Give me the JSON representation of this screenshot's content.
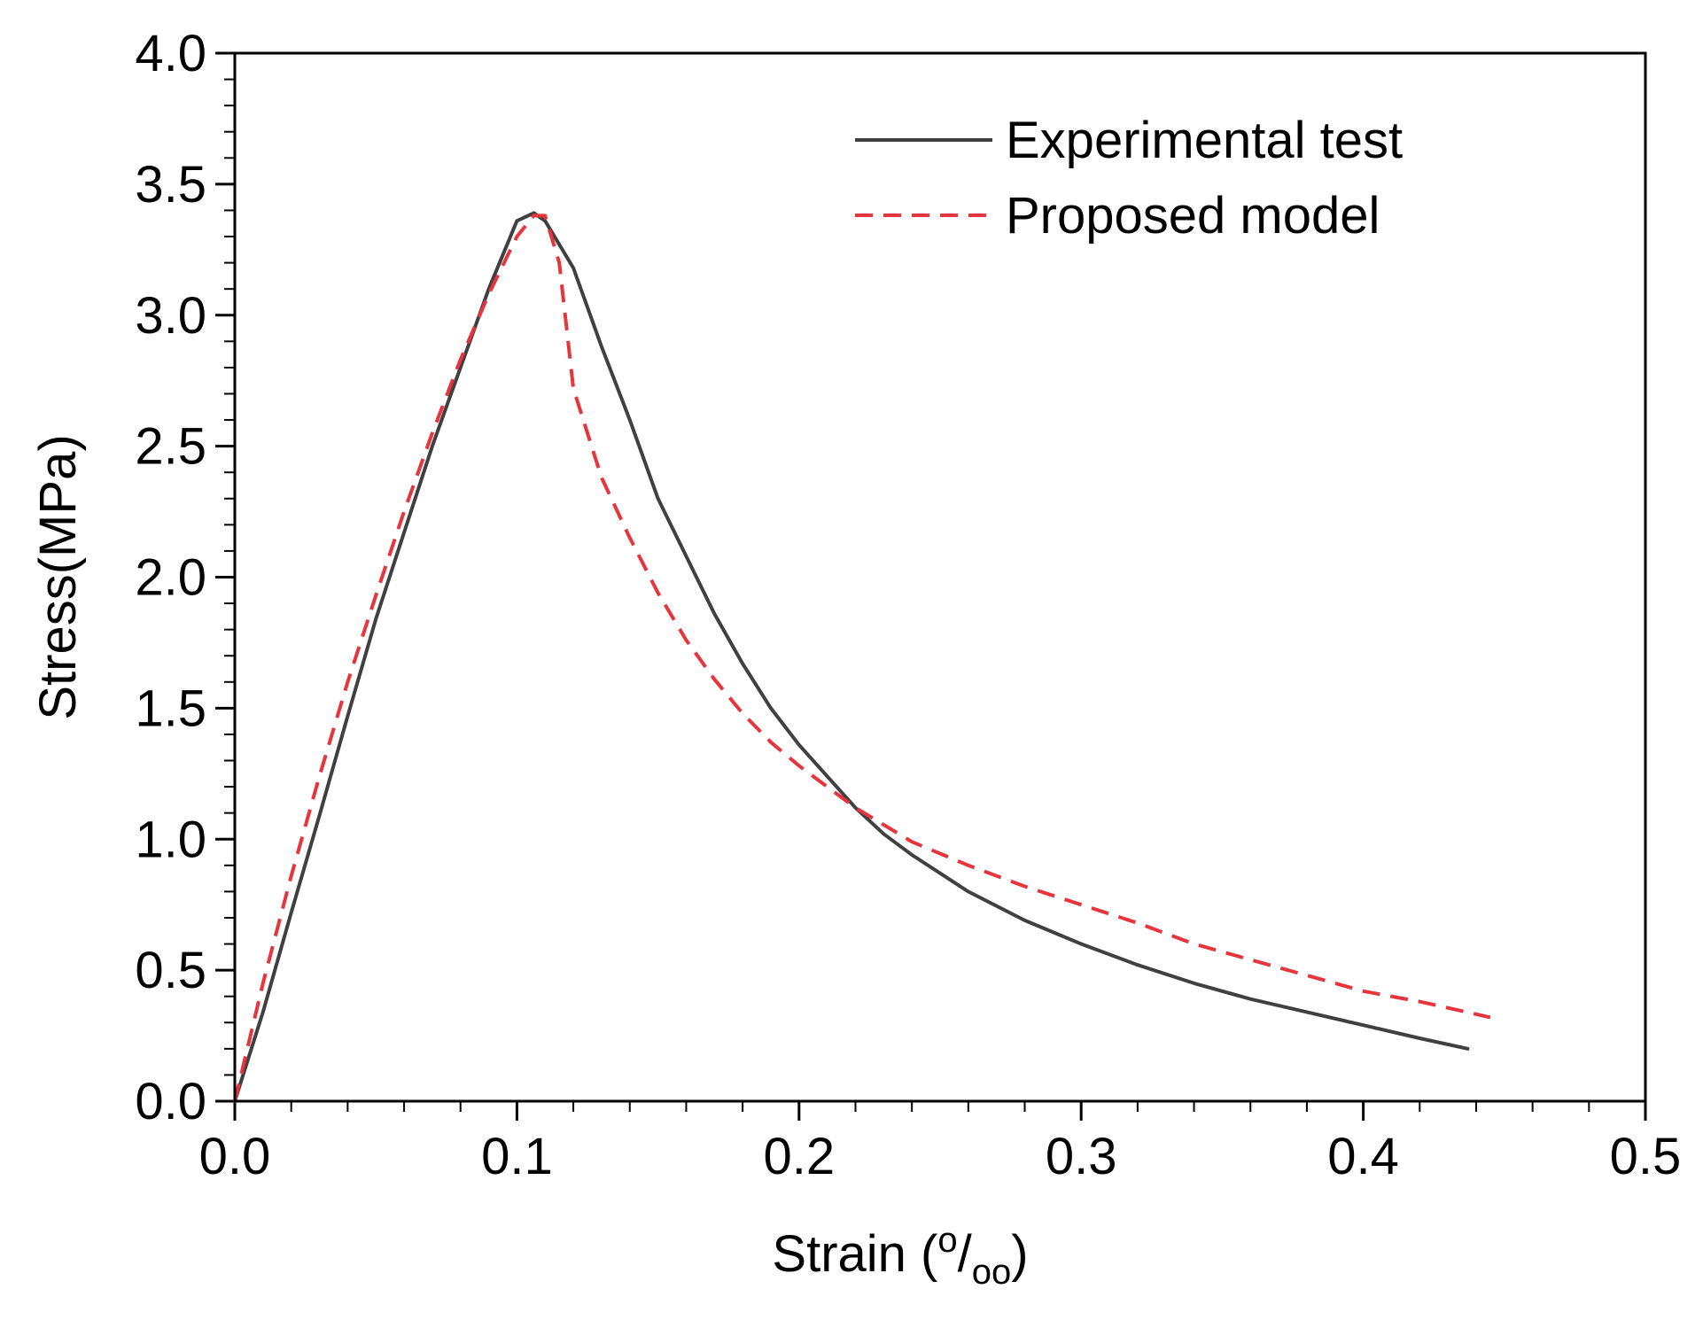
{
  "chart_data": {
    "type": "line",
    "title": "",
    "xlabel": {
      "prefix": "Strain (",
      "sup": "o",
      "slash": "/",
      "sub": "oo",
      "suffix": ")"
    },
    "ylabel": "Stress(MPa)",
    "xlim": [
      0,
      0.5
    ],
    "ylim": [
      0,
      4.0
    ],
    "xticks": [
      "0.0",
      "0.1",
      "0.2",
      "0.3",
      "0.4",
      "0.5"
    ],
    "yticks": [
      "0.0",
      "0.5",
      "1.0",
      "1.5",
      "2.0",
      "2.5",
      "3.0",
      "3.5",
      "4.0"
    ],
    "grid": false,
    "legend_position": "top-right",
    "series": [
      {
        "name": "Experimental test",
        "color": "#404040",
        "style": "solid",
        "x": [
          0.0,
          0.01,
          0.02,
          0.03,
          0.04,
          0.05,
          0.06,
          0.07,
          0.08,
          0.09,
          0.1,
          0.106,
          0.11,
          0.12,
          0.13,
          0.14,
          0.15,
          0.16,
          0.17,
          0.18,
          0.19,
          0.2,
          0.21,
          0.22,
          0.23,
          0.24,
          0.25,
          0.26,
          0.28,
          0.3,
          0.32,
          0.34,
          0.36,
          0.38,
          0.4,
          0.42,
          0.437
        ],
        "y": [
          0.0,
          0.34,
          0.72,
          1.09,
          1.47,
          1.84,
          2.17,
          2.5,
          2.8,
          3.1,
          3.36,
          3.39,
          3.36,
          3.18,
          2.88,
          2.6,
          2.3,
          2.08,
          1.86,
          1.67,
          1.5,
          1.36,
          1.24,
          1.12,
          1.02,
          0.94,
          0.87,
          0.8,
          0.69,
          0.6,
          0.52,
          0.45,
          0.39,
          0.34,
          0.29,
          0.24,
          0.2
        ]
      },
      {
        "name": "Proposed model",
        "color": "#e8343c",
        "style": "dashed",
        "x": [
          0.0,
          0.01,
          0.02,
          0.03,
          0.04,
          0.05,
          0.06,
          0.07,
          0.08,
          0.09,
          0.1,
          0.106,
          0.11,
          0.115,
          0.12,
          0.13,
          0.14,
          0.15,
          0.16,
          0.17,
          0.18,
          0.19,
          0.2,
          0.22,
          0.24,
          0.26,
          0.28,
          0.3,
          0.32,
          0.34,
          0.36,
          0.38,
          0.4,
          0.42,
          0.445
        ],
        "y": [
          0.0,
          0.45,
          0.86,
          1.24,
          1.6,
          1.93,
          2.25,
          2.55,
          2.83,
          3.08,
          3.3,
          3.38,
          3.38,
          3.2,
          2.72,
          2.38,
          2.15,
          1.94,
          1.76,
          1.61,
          1.48,
          1.37,
          1.28,
          1.12,
          0.99,
          0.9,
          0.82,
          0.75,
          0.68,
          0.6,
          0.54,
          0.48,
          0.42,
          0.38,
          0.32
        ]
      }
    ]
  }
}
